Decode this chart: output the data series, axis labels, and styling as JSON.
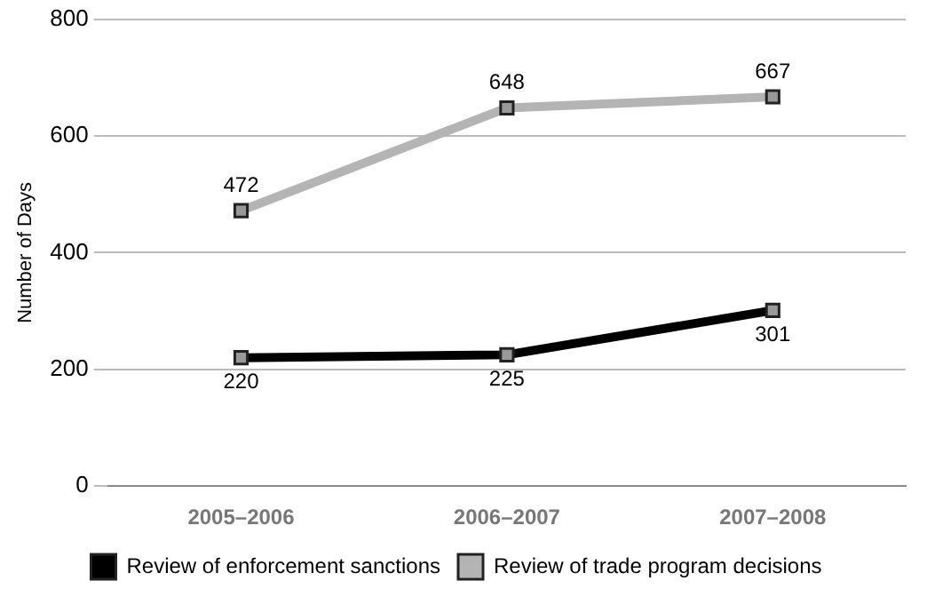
{
  "chart_data": {
    "type": "line",
    "ylabel": "Number of Days",
    "categories": [
      "2005–2006",
      "2006–2007",
      "2007–2008"
    ],
    "series": [
      {
        "name": "Review of enforcement sanctions",
        "color": "#000000",
        "values": [
          220,
          225,
          301
        ]
      },
      {
        "name": "Review of trade program decisions",
        "color": "#b4b4b4",
        "values": [
          472,
          648,
          667
        ]
      }
    ],
    "ylim": [
      0,
      800
    ],
    "yticks": [
      0,
      200,
      400,
      600,
      800
    ],
    "grid": "y",
    "legend": "bottom",
    "marker": "square",
    "line_style": "solid",
    "data_labels": true
  }
}
